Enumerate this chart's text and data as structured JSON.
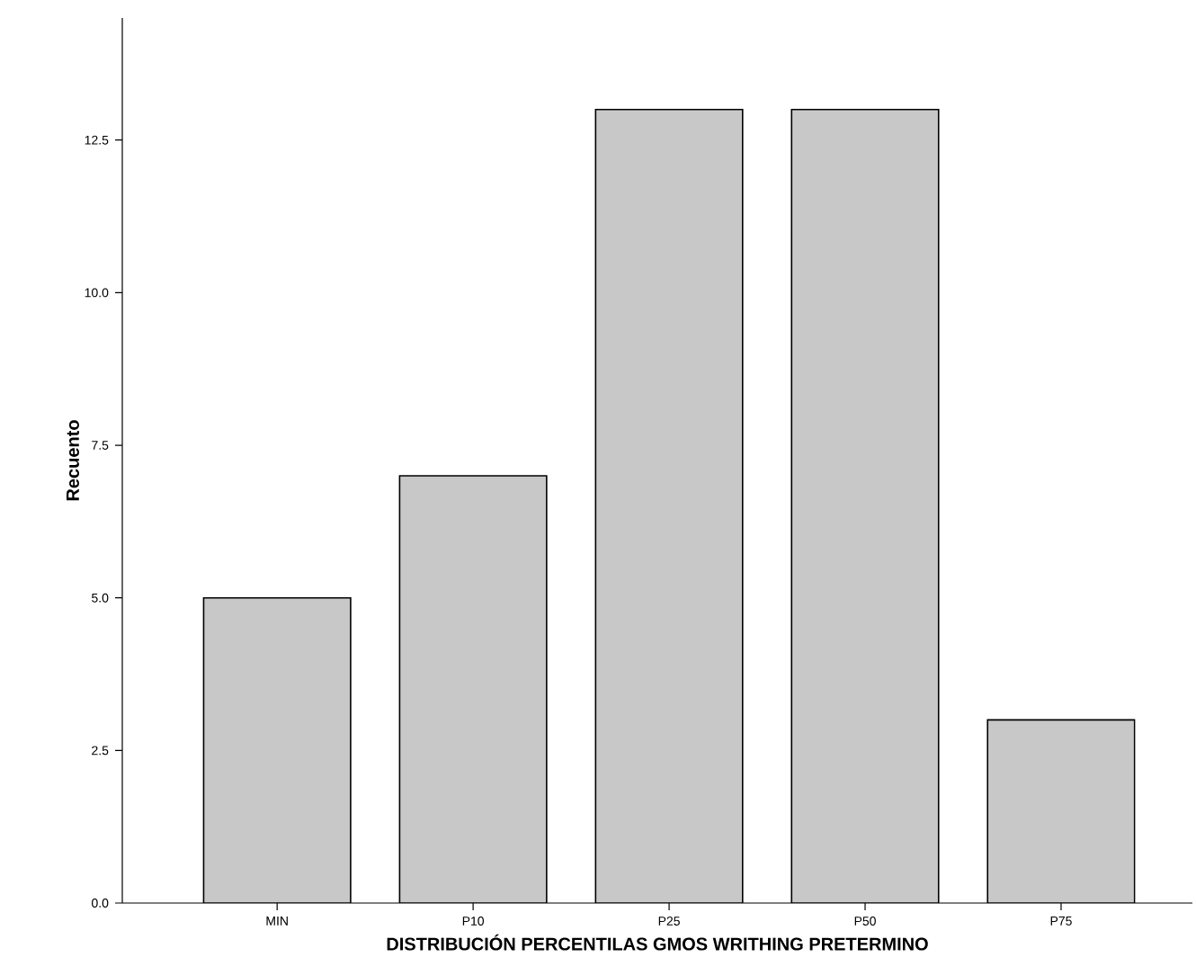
{
  "chart_data": {
    "type": "bar",
    "xlabel": "DISTRIBUCIÓN PERCENTILAS GMOS WRITHING PRETERMINO",
    "ylabel": "Recuento",
    "categories": [
      "MIN",
      "P10",
      "P25",
      "P50",
      "P75"
    ],
    "values": [
      5,
      7,
      13,
      13,
      3
    ],
    "color": "#c8c8c8",
    "ylim": [
      0,
      14.5
    ],
    "yticks": [
      {
        "value": 0,
        "label": "0.0"
      },
      {
        "value": 2.5,
        "label": "2.5"
      },
      {
        "value": 5,
        "label": "5.0"
      },
      {
        "value": 7.5,
        "label": "7.5"
      },
      {
        "value": 10,
        "label": "10.0"
      },
      {
        "value": 12.5,
        "label": "12.5"
      }
    ],
    "grid": false
  }
}
